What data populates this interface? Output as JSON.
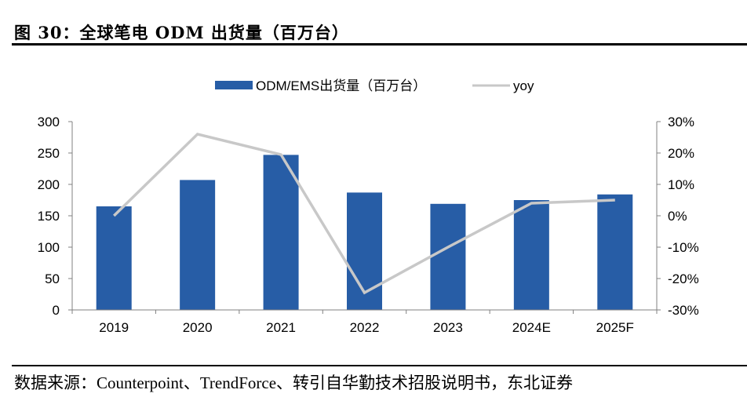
{
  "figure": {
    "title": "图 30：全球笔电 ODM 出货量（百万台）",
    "source": "数据来源：Counterpoint、TrendForce、转引自华勤技术招股说明书，东北证券"
  },
  "colors": {
    "bar": "#275DA6",
    "line": "#C8C8C8",
    "axis": "#808080",
    "text": "#000000"
  },
  "chart_data": {
    "type": "bar",
    "title": "全球笔电 ODM 出货量（百万台）",
    "xlabel": "",
    "ylabel": "",
    "categories": [
      "2019",
      "2020",
      "2021",
      "2022",
      "2023",
      "2024E",
      "2025F"
    ],
    "series": [
      {
        "name": "ODM/EMS出货量（百万台）",
        "type": "bar",
        "axis": "left",
        "values": [
          165,
          207,
          247,
          187,
          169,
          175,
          184
        ]
      },
      {
        "name": "yoy",
        "type": "line",
        "axis": "right",
        "values": [
          0.0,
          26.0,
          19.5,
          -24.5,
          -10.0,
          4.0,
          5.0
        ]
      }
    ],
    "ylim": [
      0,
      300
    ],
    "yticks": [
      "0",
      "50",
      "100",
      "150",
      "200",
      "250",
      "300"
    ],
    "ytick_values": [
      0,
      50,
      100,
      150,
      200,
      250,
      300
    ],
    "y2lim": [
      -30,
      30
    ],
    "y2ticks": [
      "-30%",
      "-20%",
      "-10%",
      "0%",
      "10%",
      "20%",
      "30%"
    ],
    "y2tick_values": [
      -30,
      -20,
      -10,
      0,
      10,
      20,
      30
    ],
    "legend": {
      "position": "top-center",
      "entries": [
        "ODM/EMS出货量（百万台）",
        "yoy"
      ]
    },
    "grid": false
  }
}
